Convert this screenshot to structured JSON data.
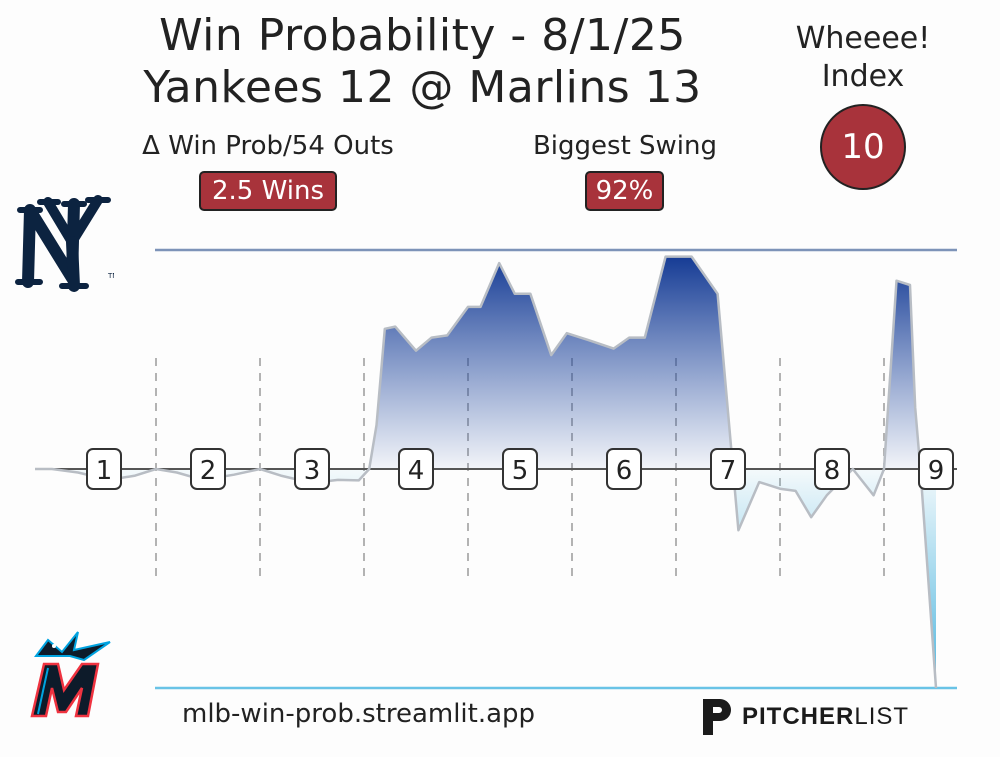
{
  "header": {
    "title_line1": "Win Probability - 8/1/25",
    "title_line2": "Yankees 12 @ Marlins 13",
    "wheee_label_line1": "Wheeee!",
    "wheee_label_line2": "Index",
    "wheee_value": "10"
  },
  "stats": {
    "stat1_label": "Δ Win Prob/54 Outs",
    "stat1_value": "2.5 Wins",
    "stat2_label": "Biggest Swing",
    "stat2_value": "92%"
  },
  "teams": {
    "top": {
      "logo_icon": "yankees-logo-icon",
      "color": "#0c2340"
    },
    "bottom": {
      "logo_icon": "marlins-logo-icon",
      "color": "#00a3e0"
    }
  },
  "footer": {
    "url": "mlb-win-prob.streamlit.app",
    "brand_bold": "PITCHER",
    "brand_light": "LIST",
    "brand_icon": "pitcherlist-logo-icon"
  },
  "colors": {
    "badge": "#a8333b",
    "top_fill": "#1e47a0",
    "bottom_fill": "#4fb6df",
    "line": "#b8bdc4"
  },
  "chart_data": {
    "type": "area",
    "ylim": [
      -50,
      50
    ],
    "xlim": [
      0,
      9
    ],
    "inning_labels": [
      "1",
      "2",
      "3",
      "4",
      "5",
      "6",
      "7",
      "8",
      "9"
    ],
    "grid": "dashed vertical inning dividers",
    "series": [
      {
        "values": [
          [
            0.0,
            0
          ],
          [
            0.25,
            -0.8
          ],
          [
            0.55,
            -2.5
          ],
          [
            0.8,
            -1.5
          ],
          [
            1.0,
            0
          ],
          [
            1.2,
            -0.8
          ],
          [
            1.45,
            -2.5
          ],
          [
            1.75,
            -1.3
          ],
          [
            2.0,
            0
          ],
          [
            2.2,
            -1.5
          ],
          [
            2.5,
            -3.2
          ],
          [
            2.75,
            -2.5
          ],
          [
            2.95,
            -2.6
          ],
          [
            3.05,
            0
          ],
          [
            3.12,
            10
          ],
          [
            3.2,
            32
          ],
          [
            3.3,
            32.5
          ],
          [
            3.5,
            27
          ],
          [
            3.65,
            30
          ],
          [
            3.8,
            30.5
          ],
          [
            4.0,
            37
          ],
          [
            4.12,
            37
          ],
          [
            4.3,
            47
          ],
          [
            4.45,
            40
          ],
          [
            4.6,
            40
          ],
          [
            4.8,
            26
          ],
          [
            4.95,
            31
          ],
          [
            5.15,
            29.5
          ],
          [
            5.4,
            27.5
          ],
          [
            5.55,
            30
          ],
          [
            5.7,
            30
          ],
          [
            5.9,
            48.5
          ],
          [
            6.15,
            48.5
          ],
          [
            6.4,
            40
          ],
          [
            6.6,
            -14
          ],
          [
            6.8,
            -3
          ],
          [
            7.0,
            -4.5
          ],
          [
            7.15,
            -5
          ],
          [
            7.3,
            -11
          ],
          [
            7.45,
            -6
          ],
          [
            7.7,
            0
          ],
          [
            7.9,
            -6
          ],
          [
            8.0,
            0
          ],
          [
            8.12,
            43
          ],
          [
            8.25,
            42
          ],
          [
            8.3,
            14
          ],
          [
            8.35,
            0
          ],
          [
            8.5,
            -50
          ]
        ]
      }
    ]
  }
}
